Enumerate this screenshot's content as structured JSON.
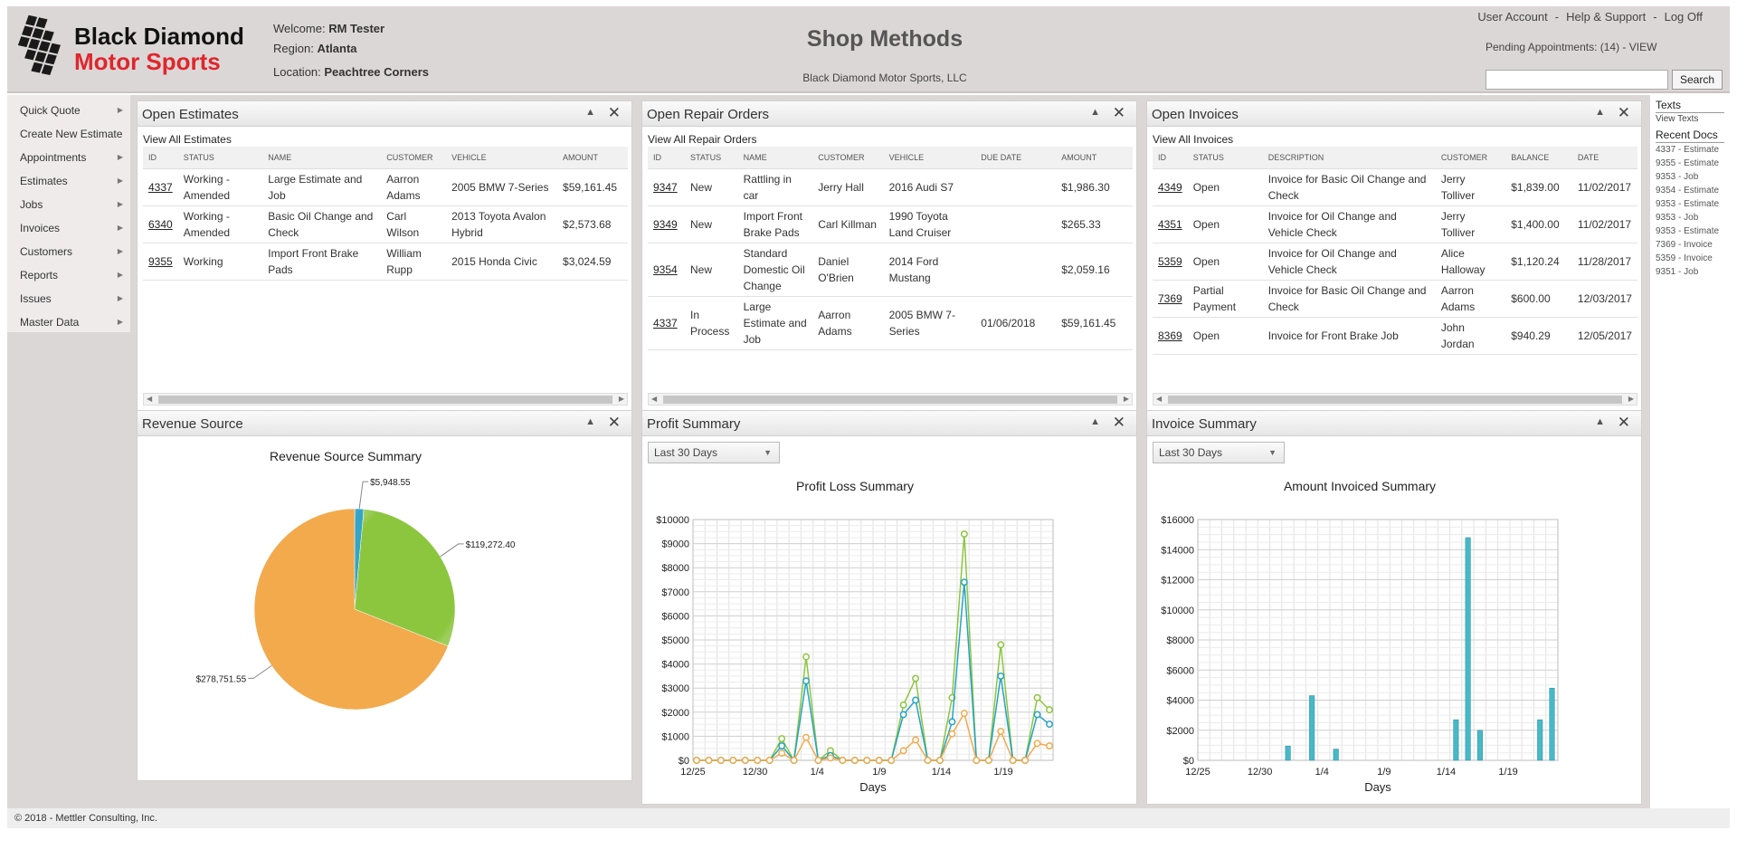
{
  "header": {
    "logo_line1": "Black Diamond",
    "logo_line2": "Motor Sports",
    "welcome_label": "Welcome:",
    "welcome_user": "RM Tester",
    "region_label": "Region:",
    "region": "Atlanta",
    "location_label": "Location:",
    "location": "Peachtree Corners",
    "title": "Shop Methods",
    "subtitle": "Black Diamond Motor Sports, LLC",
    "links": [
      "User Account",
      "Help & Support",
      "Log Off"
    ],
    "pending": "Pending Appointments: (14) - VIEW",
    "search_button": "Search",
    "search_value": ""
  },
  "nav": [
    {
      "label": "Quick Quote",
      "arrow": true
    },
    {
      "label": "Create New Estimate",
      "arrow": false
    },
    {
      "label": "Appointments",
      "arrow": true
    },
    {
      "label": "Estimates",
      "arrow": true
    },
    {
      "label": "Jobs",
      "arrow": true
    },
    {
      "label": "Invoices",
      "arrow": true
    },
    {
      "label": "Customers",
      "arrow": true
    },
    {
      "label": "Reports",
      "arrow": true
    },
    {
      "label": "Issues",
      "arrow": true
    },
    {
      "label": "Master Data",
      "arrow": true
    }
  ],
  "right_panel": {
    "texts_title": "Texts",
    "view_texts": "View Texts",
    "recent_title": "Recent Docs",
    "docs": [
      "4337 - Estimate",
      "9355 - Estimate",
      "9353 - Job",
      "9354 - Estimate",
      "9353 - Estimate",
      "9353 - Job",
      "9353 - Estimate",
      "7369 - Invoice",
      "5359 - Invoice",
      "9351 - Job"
    ]
  },
  "estimates": {
    "title": "Open Estimates",
    "view_all": "View All Estimates",
    "columns": [
      "ID",
      "STATUS",
      "NAME",
      "CUSTOMER",
      "VEHICLE",
      "AMOUNT"
    ],
    "rows": [
      [
        "4337",
        "Working - Amended",
        "Large Estimate and Job",
        "Aarron Adams",
        "2005 BMW 7-Series",
        "$59,161.45"
      ],
      [
        "6340",
        "Working - Amended",
        "Basic Oil Change and Check",
        "Carl Wilson",
        "2013 Toyota Avalon Hybrid",
        "$2,573.68"
      ],
      [
        "9355",
        "Working",
        "Import Front Brake Pads",
        "William Rupp",
        "2015 Honda Civic",
        "$3,024.59"
      ]
    ]
  },
  "repair_orders": {
    "title": "Open Repair Orders",
    "view_all": "View All Repair Orders",
    "columns": [
      "ID",
      "STATUS",
      "NAME",
      "CUSTOMER",
      "VEHICLE",
      "DUE DATE",
      "AMOUNT"
    ],
    "rows": [
      [
        "9347",
        "New",
        "Rattling in car",
        "Jerry Hall",
        "2016 Audi S7",
        "",
        "$1,986.30"
      ],
      [
        "9349",
        "New",
        "Import Front Brake Pads",
        "Carl Killman",
        "1990 Toyota Land Cruiser",
        "",
        "$265.33"
      ],
      [
        "9354",
        "New",
        "Standard Domestic Oil Change",
        "Daniel O'Brien",
        "2014 Ford Mustang",
        "",
        "$2,059.16"
      ],
      [
        "4337",
        "In Process",
        "Large Estimate and Job",
        "Aarron Adams",
        "2005 BMW 7-Series",
        "01/06/2018",
        "$59,161.45"
      ]
    ]
  },
  "invoices": {
    "title": "Open Invoices",
    "view_all": "View All Invoices",
    "columns": [
      "ID",
      "STATUS",
      "DESCRIPTION",
      "CUSTOMER",
      "BALANCE",
      "DATE"
    ],
    "rows": [
      [
        "4349",
        "Open",
        "Invoice for Basic Oil Change and Check",
        "Jerry Tolliver",
        "$1,839.00",
        "11/02/2017"
      ],
      [
        "4351",
        "Open",
        "Invoice for Oil Change and Vehicle Check",
        "Jerry Tolliver",
        "$1,400.00",
        "11/02/2017"
      ],
      [
        "5359",
        "Open",
        "Invoice for Oil Change and Vehicle Check",
        "Alice Halloway",
        "$1,120.24",
        "11/28/2017"
      ],
      [
        "7369",
        "Partial Payment",
        "Invoice for Basic Oil Change and Check",
        "Aarron Adams",
        "$600.00",
        "12/03/2017"
      ],
      [
        "8369",
        "Open",
        "Invoice for Front Brake Job",
        "John Jordan",
        "$940.29",
        "12/05/2017"
      ]
    ]
  },
  "revenue_widget": {
    "title": "Revenue Source"
  },
  "profit_widget": {
    "title": "Profit Summary",
    "range": "Last 30 Days"
  },
  "invoice_widget": {
    "title": "Invoice Summary",
    "range": "Last 30 Days"
  },
  "footer": "© 2018 - Mettler Consulting, Inc.",
  "colors": {
    "green": "#8cc63f",
    "orange": "#f2aa4c",
    "blue": "#26a3c4",
    "teal": "#47b8c7"
  },
  "chart_data": [
    {
      "type": "pie",
      "title": "Revenue Source Summary",
      "slices": [
        {
          "label": "$5,948.55",
          "value": 5948.55,
          "color": "#34a4c8"
        },
        {
          "label": "$119,272.40",
          "value": 119272.4,
          "color": "#8cc63f"
        },
        {
          "label": "$278,751.55",
          "value": 278751.55,
          "color": "#f2aa4c"
        }
      ]
    },
    {
      "type": "line",
      "title": "Profit Loss Summary",
      "xlabel": "Days",
      "ylabel": "",
      "ylim": [
        0,
        10000
      ],
      "yticks": [
        "$0",
        "$1000",
        "$2000",
        "$3000",
        "$4000",
        "$5000",
        "$6000",
        "$7000",
        "$8000",
        "$9000",
        "$10000"
      ],
      "xticks": [
        {
          "label": "12/25",
          "index": 0
        },
        {
          "label": "12/30",
          "index": 5
        },
        {
          "label": "1/4",
          "index": 10
        },
        {
          "label": "1/9",
          "index": 15
        },
        {
          "label": "1/14",
          "index": 20
        },
        {
          "label": "1/19",
          "index": 25
        }
      ],
      "series": [
        {
          "color": "#8cc63f",
          "values": [
            0,
            0,
            0,
            0,
            0,
            0,
            0,
            900,
            0,
            4300,
            0,
            400,
            0,
            0,
            0,
            0,
            0,
            2300,
            3400,
            0,
            0,
            2600,
            9400,
            0,
            0,
            4800,
            0,
            0,
            2600,
            2100
          ]
        },
        {
          "color": "#26a3c4",
          "values": [
            0,
            0,
            0,
            0,
            0,
            0,
            0,
            600,
            0,
            3300,
            0,
            200,
            0,
            0,
            0,
            0,
            0,
            1900,
            2500,
            0,
            0,
            1600,
            7400,
            0,
            0,
            3500,
            0,
            0,
            1900,
            1500
          ]
        },
        {
          "color": "#f2aa4c",
          "values": [
            0,
            0,
            0,
            0,
            0,
            0,
            0,
            300,
            0,
            950,
            0,
            100,
            0,
            0,
            0,
            0,
            0,
            400,
            850,
            0,
            0,
            1100,
            1950,
            0,
            0,
            1200,
            0,
            0,
            700,
            600
          ]
        }
      ]
    },
    {
      "type": "bar",
      "title": "Amount Invoiced Summary",
      "xlabel": "Days",
      "ylabel": "",
      "ylim": [
        0,
        16000
      ],
      "yticks": [
        "$0",
        "$2000",
        "$4000",
        "$6000",
        "$8000",
        "$10000",
        "$12000",
        "$14000",
        "$16000"
      ],
      "xticks": [
        {
          "label": "12/25",
          "index": 0
        },
        {
          "label": "12/30",
          "index": 5
        },
        {
          "label": "1/4",
          "index": 10
        },
        {
          "label": "1/9",
          "index": 15
        },
        {
          "label": "1/14",
          "index": 20
        },
        {
          "label": "1/19",
          "index": 25
        }
      ],
      "color": "#47b8c7",
      "values": [
        0,
        0,
        0,
        0,
        0,
        0,
        0,
        950,
        0,
        4300,
        0,
        750,
        0,
        0,
        0,
        0,
        0,
        0,
        0,
        0,
        0,
        2700,
        14800,
        2000,
        0,
        0,
        0,
        0,
        2700,
        4800
      ]
    }
  ]
}
